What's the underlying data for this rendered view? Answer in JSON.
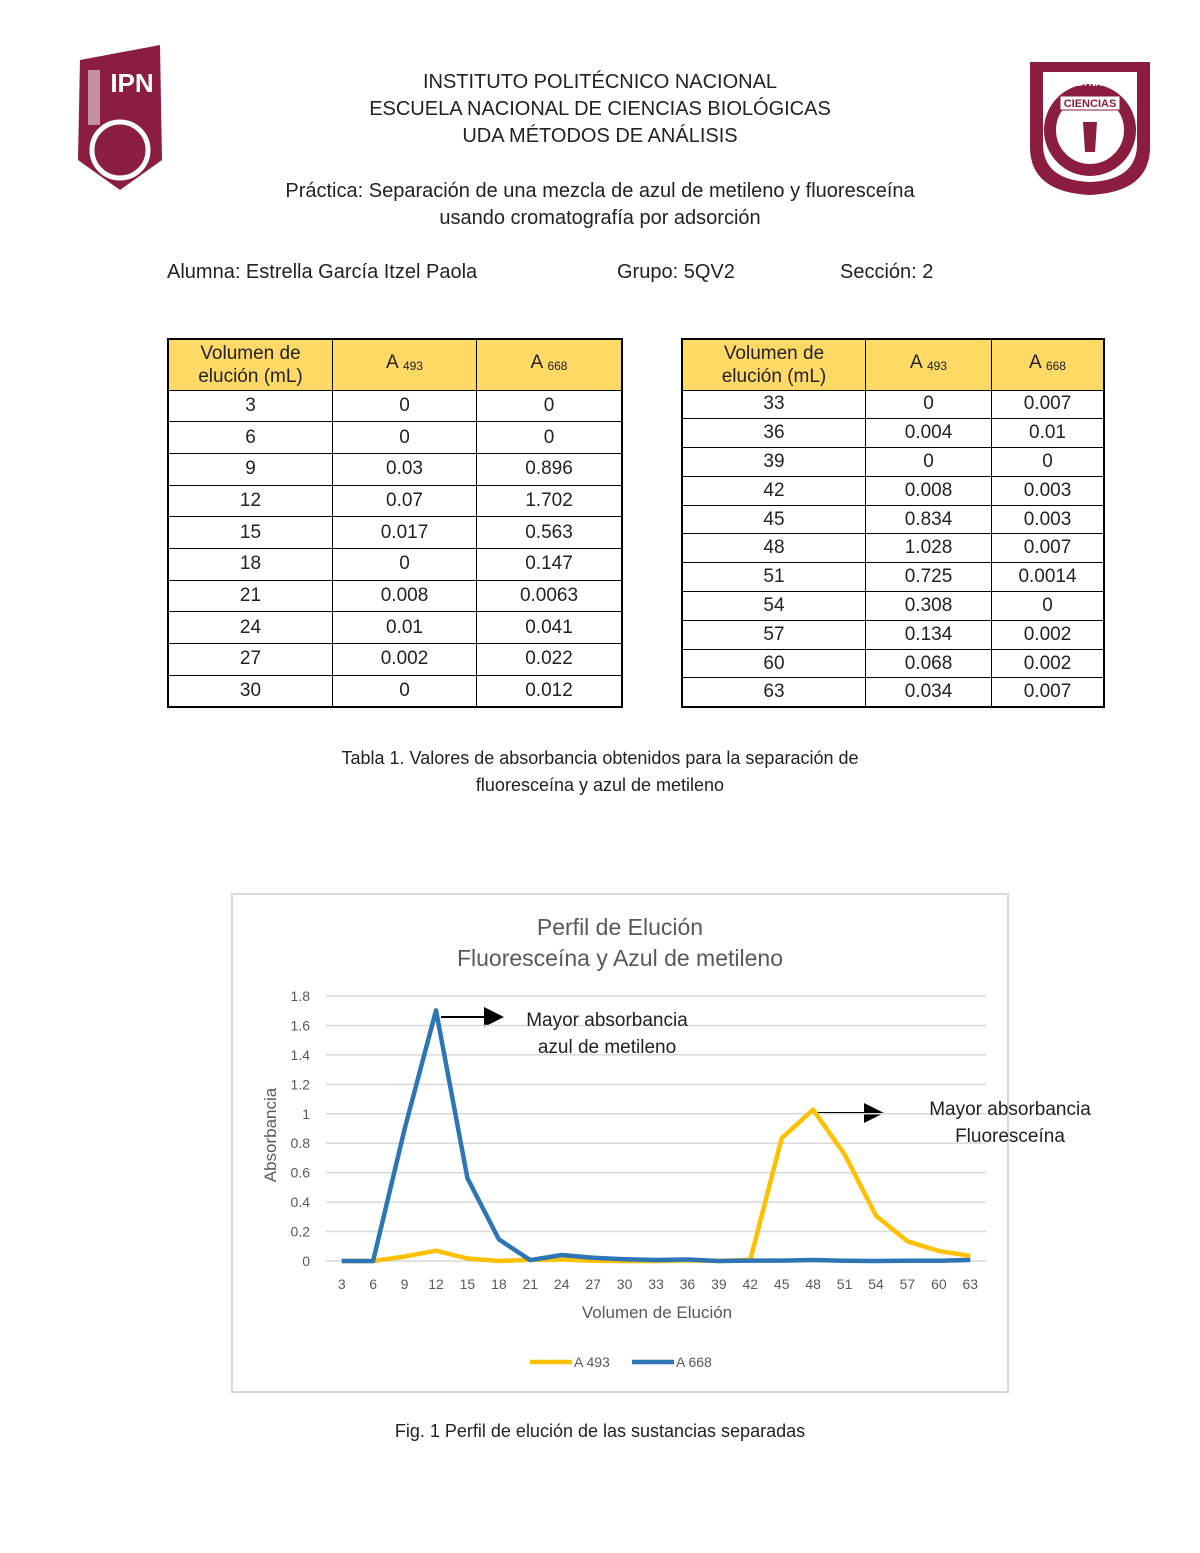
{
  "logos": {
    "left": "IPN",
    "right": [
      "ESCUELA NACIONAL",
      "CIENCIAS"
    ]
  },
  "header": {
    "lines": [
      "INSTITUTO POLITÉCNICO NACIONAL",
      "ESCUELA NACIONAL DE CIENCIAS BIOLÓGICAS",
      "UDA MÉTODOS DE ANÁLISIS"
    ],
    "practice": [
      "Práctica: Separación de una mezcla de azul de metileno y fluoresceína",
      "usando cromatografía por adsorción"
    ],
    "student": "Alumna: Estrella García Itzel Paola",
    "group": "Grupo: 5QV2",
    "section": "Sección: 2"
  },
  "tables": [
    {
      "columns": [
        "Volumen de elución (mL)",
        {
          "base": "A",
          "sub": "493"
        },
        {
          "base": "A",
          "sub": "668"
        }
      ],
      "rows": [
        [
          3,
          0,
          0
        ],
        [
          6,
          0,
          0
        ],
        [
          9,
          0.03,
          0.896
        ],
        [
          12,
          0.07,
          1.702
        ],
        [
          15,
          0.017,
          0.563
        ],
        [
          18,
          0,
          0.147
        ],
        [
          21,
          0.008,
          0.0063
        ],
        [
          24,
          0.01,
          0.041
        ],
        [
          27,
          0.002,
          0.022
        ],
        [
          30,
          0,
          0.012
        ]
      ]
    },
    {
      "columns": [
        "Volumen de elución (mL)",
        {
          "base": "A",
          "sub": "493"
        },
        {
          "base": "A",
          "sub": "668"
        }
      ],
      "rows": [
        [
          33,
          0,
          0.007
        ],
        [
          36,
          0.004,
          0.01
        ],
        [
          39,
          0,
          0
        ],
        [
          42,
          0.008,
          0.003
        ],
        [
          45,
          0.834,
          0.003
        ],
        [
          48,
          1.028,
          0.007
        ],
        [
          51,
          0.725,
          0.0014
        ],
        [
          54,
          0.308,
          0
        ],
        [
          57,
          0.134,
          0.002
        ],
        [
          60,
          0.068,
          0.002
        ],
        [
          63,
          0.034,
          0.007
        ]
      ]
    }
  ],
  "table_caption": [
    "Tabla 1. Valores de absorbancia obtenidos para la separación de",
    "fluoresceína y azul de metileno"
  ],
  "chart_data": {
    "type": "line",
    "title": [
      "Perfil de Elución",
      "Fluoresceína y Azul de metileno"
    ],
    "x_label": "Volumen de Elución",
    "y_label": "Absorbancia",
    "categories": [
      3,
      6,
      9,
      12,
      15,
      18,
      21,
      24,
      27,
      30,
      33,
      36,
      39,
      42,
      45,
      48,
      51,
      54,
      57,
      60,
      63
    ],
    "series": [
      {
        "name": "A 493",
        "color": "#FFC000",
        "values": [
          0,
          0,
          0.03,
          0.07,
          0.017,
          0,
          0.008,
          0.01,
          0.002,
          0,
          0,
          0.004,
          0,
          0.008,
          0.834,
          1.028,
          0.725,
          0.308,
          0.134,
          0.068,
          0.034
        ]
      },
      {
        "name": "A 668",
        "color": "#2E75B6",
        "values": [
          0,
          0,
          0.896,
          1.702,
          0.563,
          0.147,
          0.0063,
          0.041,
          0.022,
          0.012,
          0.007,
          0.01,
          0,
          0.003,
          0.003,
          0.007,
          0.0014,
          0,
          0.002,
          0.002,
          0.007
        ]
      }
    ],
    "ylim": [
      0,
      1.8
    ],
    "yticks": [
      0,
      0.2,
      0.4,
      0.6,
      0.8,
      1,
      1.2,
      1.4,
      1.6,
      1.8
    ],
    "grid": true,
    "legend": "bottom",
    "annotations": [
      [
        "Mayor absorbancia",
        "azul de metileno"
      ],
      [
        "Mayor absorbancia",
        "Fluoresceína"
      ]
    ]
  },
  "figure_caption": "Fig. 1 Perfil de elución de las sustancias separadas"
}
